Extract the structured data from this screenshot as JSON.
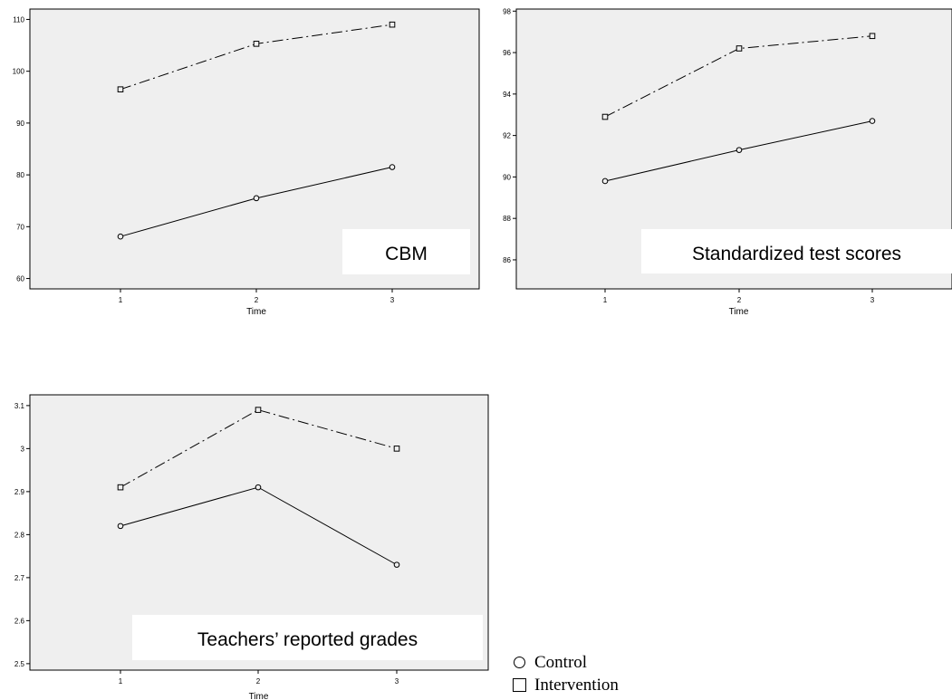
{
  "chart_data": [
    {
      "type": "line",
      "title": "",
      "panel_label": "CBM",
      "xlabel": "Time",
      "ylabel": "",
      "x": [
        1,
        2,
        3
      ],
      "xticks": [
        "1",
        "2",
        "3"
      ],
      "ylim": [
        58,
        112
      ],
      "yticks": [
        60,
        70,
        80,
        90,
        100,
        110
      ],
      "ytick_labels": [
        "60",
        "70",
        "80",
        "90",
        "100",
        "110"
      ],
      "grid": false,
      "series": [
        {
          "name": "Control",
          "marker": "circle",
          "style": "solid",
          "values": [
            68.1,
            75.5,
            81.5
          ]
        },
        {
          "name": "Intervention",
          "marker": "square",
          "style": "dashdot",
          "values": [
            96.5,
            105.3,
            109.0
          ]
        }
      ]
    },
    {
      "type": "line",
      "title": "",
      "panel_label": "Standardized test scores",
      "xlabel": "Time",
      "ylabel": "",
      "x": [
        1,
        2,
        3
      ],
      "xticks": [
        "1",
        "2",
        "3"
      ],
      "ylim": [
        84.6,
        98.1
      ],
      "yticks": [
        86,
        88,
        90,
        92,
        94,
        96,
        98
      ],
      "ytick_labels": [
        "86",
        "88",
        "90",
        "92",
        "94",
        "96",
        "98"
      ],
      "grid": false,
      "series": [
        {
          "name": "Control",
          "marker": "circle",
          "style": "solid",
          "values": [
            89.8,
            91.3,
            92.7
          ]
        },
        {
          "name": "Intervention",
          "marker": "square",
          "style": "dashdot",
          "values": [
            92.9,
            96.2,
            96.8
          ]
        }
      ]
    },
    {
      "type": "line",
      "title": "",
      "panel_label": "Teachers’ reported grades",
      "xlabel": "Time",
      "ylabel": "",
      "x": [
        1,
        2,
        3
      ],
      "xticks": [
        "1",
        "2",
        "3"
      ],
      "ylim": [
        2.485,
        3.125
      ],
      "yticks": [
        2.5,
        2.6,
        2.7,
        2.8,
        2.9,
        3.0,
        3.1
      ],
      "ytick_labels": [
        "2.5",
        "2.6",
        "2.7",
        "2.8",
        "2.9",
        "3",
        "3.1"
      ],
      "grid": false,
      "series": [
        {
          "name": "Control",
          "marker": "circle",
          "style": "solid",
          "values": [
            2.82,
            2.91,
            2.73
          ]
        },
        {
          "name": "Intervention",
          "marker": "square",
          "style": "dashdot",
          "values": [
            2.91,
            3.09,
            3.0
          ]
        }
      ]
    }
  ],
  "legend": {
    "items": [
      {
        "label": "Control",
        "marker": "circle"
      },
      {
        "label": "Intervention",
        "marker": "square"
      }
    ]
  },
  "colors": {
    "plot_background": "#efefef",
    "line": "#000000",
    "label_box": "#ffffff"
  }
}
